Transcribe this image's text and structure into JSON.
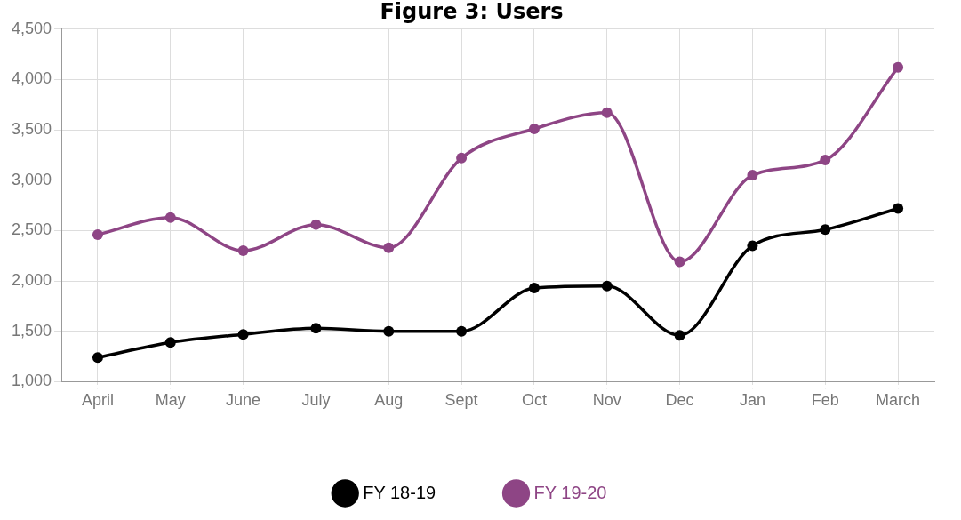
{
  "chart_data": {
    "type": "line",
    "title": "Figure 3: Users",
    "categories": [
      "April",
      "May",
      "June",
      "July",
      "Aug",
      "Sept",
      "Oct",
      "Nov",
      "Dec",
      "Jan",
      "Feb",
      "March"
    ],
    "series": [
      {
        "name": "FY 18-19",
        "color": "#000000",
        "values": [
          1240,
          1390,
          1470,
          1530,
          1500,
          1500,
          1930,
          1950,
          1460,
          2350,
          2510,
          2720
        ]
      },
      {
        "name": "FY 19-20",
        "color": "#8e4585",
        "values": [
          2460,
          2630,
          2300,
          2560,
          2330,
          3220,
          3510,
          3670,
          2190,
          3050,
          3200,
          4120
        ]
      }
    ],
    "ylim": [
      1000,
      4500
    ],
    "yticks": [
      {
        "value": 1000,
        "label": "1,000"
      },
      {
        "value": 1500,
        "label": "1,500"
      },
      {
        "value": 2000,
        "label": "2,000"
      },
      {
        "value": 2500,
        "label": "2,500"
      },
      {
        "value": 3000,
        "label": "3,000"
      },
      {
        "value": 3500,
        "label": "3,500"
      },
      {
        "value": 4000,
        "label": "4,000"
      },
      {
        "value": 4500,
        "label": "4,500"
      }
    ],
    "grid": true,
    "legend": "bottom",
    "marker": "circle",
    "line_style": "solid"
  }
}
